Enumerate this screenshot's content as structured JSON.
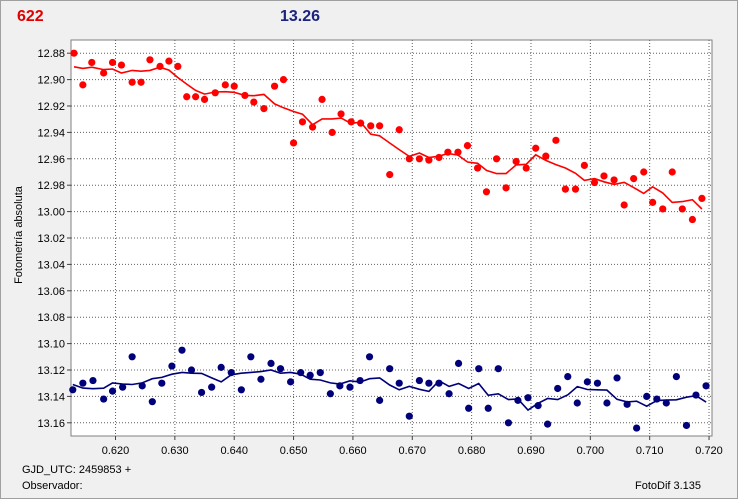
{
  "header": {
    "left_value": "622",
    "right_value": "13.26",
    "left_color": "#e00000",
    "right_color": "#1a237e"
  },
  "footer": {
    "gjd": "GJD_UTC: 2459853 +",
    "observer": "Observador:",
    "version": "FotoDif 3.135"
  },
  "chart_data": {
    "type": "scatter",
    "ylabel": "Fotometría absoluta",
    "xlim": [
      0.6125,
      0.7205
    ],
    "ylim": [
      12.87,
      13.17
    ],
    "y_inverted": true,
    "grid": true,
    "x_ticks": [
      "0.620",
      "0.630",
      "0.640",
      "0.650",
      "0.660",
      "0.670",
      "0.680",
      "0.690",
      "0.700",
      "0.710",
      "0.720"
    ],
    "y_ticks": [
      "12.88",
      "12.90",
      "12.92",
      "12.94",
      "12.96",
      "12.98",
      "13.00",
      "13.02",
      "13.04",
      "13.06",
      "13.08",
      "13.10",
      "13.12",
      "13.14",
      "13.16"
    ],
    "series": [
      {
        "color": "#ff0000",
        "x": [
          0.613,
          0.6145,
          0.616,
          0.618,
          0.6195,
          0.621,
          0.6228,
          0.6243,
          0.6258,
          0.6275,
          0.629,
          0.6305,
          0.632,
          0.6335,
          0.635,
          0.6368,
          0.6385,
          0.64,
          0.6418,
          0.6433,
          0.645,
          0.6468,
          0.6483,
          0.65,
          0.6515,
          0.6532,
          0.6548,
          0.6565,
          0.658,
          0.6597,
          0.6613,
          0.663,
          0.6645,
          0.6662,
          0.6678,
          0.6695,
          0.6712,
          0.6728,
          0.6745,
          0.676,
          0.6777,
          0.6793,
          0.681,
          0.6825,
          0.6842,
          0.6858,
          0.6875,
          0.6892,
          0.6908,
          0.6925,
          0.6942,
          0.6958,
          0.6975,
          0.699,
          0.7007,
          0.7023,
          0.704,
          0.7057,
          0.7073,
          0.709,
          0.7105,
          0.7122,
          0.7138,
          0.7155,
          0.7172,
          0.7188
        ],
        "y": [
          12.88,
          12.904,
          12.887,
          12.895,
          12.887,
          12.889,
          12.902,
          12.902,
          12.885,
          12.89,
          12.886,
          12.89,
          12.913,
          12.913,
          12.915,
          12.91,
          12.904,
          12.905,
          12.912,
          12.917,
          12.922,
          12.905,
          12.9,
          12.948,
          12.932,
          12.936,
          12.915,
          12.94,
          12.926,
          12.932,
          12.933,
          12.935,
          12.935,
          12.972,
          12.938,
          12.96,
          12.96,
          12.961,
          12.959,
          12.955,
          12.955,
          12.95,
          12.967,
          12.985,
          12.96,
          12.982,
          12.962,
          12.967,
          12.952,
          12.958,
          12.946,
          12.983,
          12.983,
          12.965,
          12.978,
          12.973,
          12.976,
          12.995,
          12.975,
          12.97,
          12.993,
          12.998,
          12.97,
          12.998,
          13.006,
          12.99
        ]
      },
      {
        "color": "#00007a",
        "x": [
          0.6128,
          0.6145,
          0.6162,
          0.618,
          0.6195,
          0.6212,
          0.6228,
          0.6245,
          0.6262,
          0.6278,
          0.6295,
          0.6312,
          0.6328,
          0.6345,
          0.6362,
          0.6378,
          0.6395,
          0.6412,
          0.6428,
          0.6445,
          0.6462,
          0.6478,
          0.6495,
          0.6512,
          0.6528,
          0.6545,
          0.6562,
          0.6578,
          0.6595,
          0.6612,
          0.6628,
          0.6645,
          0.6662,
          0.6678,
          0.6695,
          0.6712,
          0.6728,
          0.6745,
          0.6762,
          0.6778,
          0.6795,
          0.6812,
          0.6828,
          0.6845,
          0.6862,
          0.6878,
          0.6895,
          0.6912,
          0.6928,
          0.6945,
          0.6962,
          0.6978,
          0.6995,
          0.7012,
          0.7028,
          0.7045,
          0.7062,
          0.7078,
          0.7095,
          0.7112,
          0.7128,
          0.7145,
          0.7162,
          0.7178,
          0.7195
        ],
        "y": [
          13.135,
          13.13,
          13.128,
          13.142,
          13.136,
          13.133,
          13.11,
          13.132,
          13.144,
          13.13,
          13.117,
          13.105,
          13.12,
          13.137,
          13.133,
          13.118,
          13.122,
          13.135,
          13.11,
          13.127,
          13.115,
          13.119,
          13.129,
          13.122,
          13.124,
          13.122,
          13.138,
          13.132,
          13.133,
          13.128,
          13.11,
          13.143,
          13.119,
          13.13,
          13.155,
          13.128,
          13.13,
          13.13,
          13.138,
          13.115,
          13.149,
          13.119,
          13.149,
          13.119,
          13.16,
          13.143,
          13.141,
          13.147,
          13.161,
          13.134,
          13.125,
          13.145,
          13.129,
          13.13,
          13.145,
          13.126,
          13.146,
          13.164,
          13.14,
          13.142,
          13.145,
          13.125,
          13.162,
          13.139,
          13.132
        ]
      }
    ]
  }
}
